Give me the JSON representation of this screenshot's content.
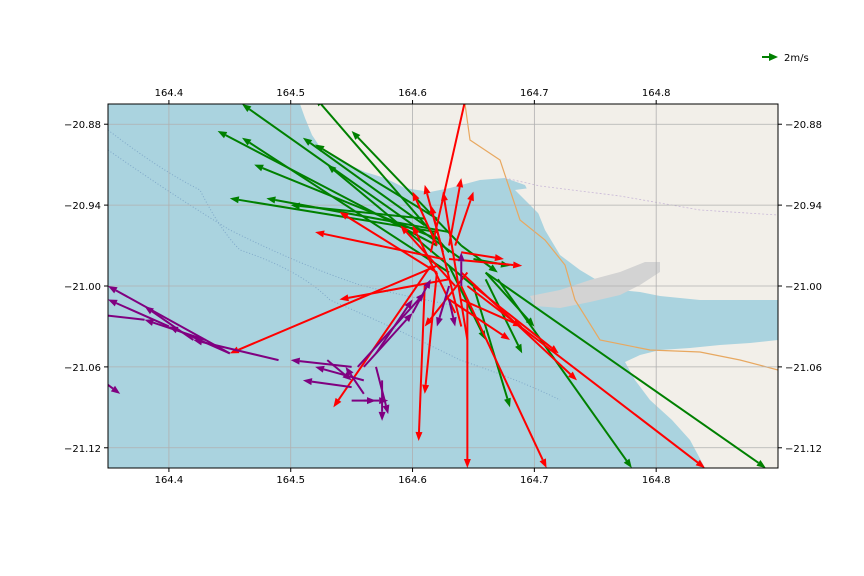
{
  "chart_data": {
    "type": "quiver",
    "xlim": [
      164.35,
      164.9
    ],
    "ylim": [
      -21.135,
      -20.865
    ],
    "x_ticks": [
      164.4,
      164.5,
      164.6,
      164.7,
      164.8
    ],
    "x_tick_labels": [
      "164.4",
      "164.5",
      "164.6",
      "164.7",
      "164.8"
    ],
    "y_ticks": [
      -20.88,
      -20.94,
      -21.0,
      -21.06,
      -21.12
    ],
    "y_tick_labels": [
      "−20.88",
      "−20.94",
      "−21.00",
      "−21.06",
      "−21.12"
    ],
    "grid": true,
    "ticks_on": "all-sides",
    "legend": {
      "label": "2m/s",
      "color": "#008000",
      "position": "top-right"
    },
    "colors": {
      "sea": "#aad3df",
      "land": "#f2efe9",
      "green": "#008000",
      "red": "#ff0000",
      "purple": "#800080",
      "grid": "#b0b0b0"
    },
    "series": [
      {
        "color": "green",
        "vectors": [
          [
            164.64,
            -20.98,
            164.46,
            -20.865
          ],
          [
            164.63,
            -20.975,
            164.52,
            -20.86
          ],
          [
            164.62,
            -20.965,
            164.47,
            -20.91
          ],
          [
            164.61,
            -20.955,
            164.51,
            -20.89
          ],
          [
            164.62,
            -20.97,
            164.44,
            -20.885
          ],
          [
            164.63,
            -20.99,
            164.46,
            -20.89
          ],
          [
            164.65,
            -21.0,
            164.53,
            -20.91
          ],
          [
            164.62,
            -20.96,
            164.45,
            -20.935
          ],
          [
            164.63,
            -20.96,
            164.48,
            -20.935
          ],
          [
            164.64,
            -20.97,
            164.55,
            -20.885
          ],
          [
            164.67,
            -20.995,
            164.78,
            -21.135
          ],
          [
            164.66,
            -20.99,
            164.89,
            -21.135
          ],
          [
            164.66,
            -20.995,
            164.69,
            -21.05
          ],
          [
            164.65,
            -21.0,
            164.68,
            -21.09
          ],
          [
            164.66,
            -20.99,
            164.7,
            -21.03
          ],
          [
            164.65,
            -20.98,
            164.68,
            -20.985
          ],
          [
            164.64,
            -20.97,
            164.67,
            -20.99
          ],
          [
            164.61,
            -20.95,
            164.5,
            -20.94
          ],
          [
            164.62,
            -20.95,
            164.52,
            -20.895
          ],
          [
            164.63,
            -20.985,
            164.66,
            -21.04
          ]
        ]
      },
      {
        "color": "red",
        "vectors": [
          [
            164.615,
            -20.975,
            164.645,
            -20.855
          ],
          [
            164.645,
            -21.01,
            164.645,
            -21.135
          ],
          [
            164.61,
            -21.0,
            164.605,
            -21.115
          ],
          [
            164.62,
            -20.99,
            164.61,
            -21.08
          ],
          [
            164.625,
            -20.98,
            164.52,
            -20.96
          ],
          [
            164.62,
            -20.985,
            164.45,
            -21.05
          ],
          [
            164.63,
            -20.995,
            164.54,
            -21.01
          ],
          [
            164.62,
            -20.99,
            164.54,
            -20.945
          ],
          [
            164.63,
            -20.98,
            164.69,
            -20.985
          ],
          [
            164.64,
            -20.99,
            164.735,
            -21.07
          ],
          [
            164.65,
            -21.0,
            164.72,
            -21.05
          ],
          [
            164.645,
            -21.0,
            164.84,
            -21.135
          ],
          [
            164.64,
            -21.0,
            164.71,
            -21.135
          ],
          [
            164.615,
            -20.985,
            164.535,
            -21.09
          ],
          [
            164.62,
            -20.97,
            164.6,
            -20.93
          ],
          [
            164.625,
            -20.975,
            164.61,
            -20.925
          ],
          [
            164.63,
            -20.97,
            164.64,
            -20.92
          ],
          [
            164.635,
            -20.97,
            164.65,
            -20.93
          ],
          [
            164.64,
            -20.975,
            164.675,
            -20.98
          ],
          [
            164.645,
            -20.99,
            164.61,
            -21.03
          ],
          [
            164.63,
            -21.01,
            164.68,
            -21.04
          ],
          [
            164.635,
            -21.02,
            164.6,
            -20.955
          ],
          [
            164.64,
            -21.03,
            164.615,
            -20.94
          ],
          [
            164.645,
            -21.04,
            164.625,
            -20.93
          ],
          [
            164.64,
            -21.01,
            164.69,
            -21.03
          ],
          [
            164.635,
            -21.0,
            164.59,
            -20.955
          ]
        ]
      },
      {
        "color": "purple",
        "vectors": [
          [
            164.45,
            -21.05,
            164.35,
            -21.0
          ],
          [
            164.4,
            -21.03,
            164.35,
            -21.01
          ],
          [
            164.38,
            -21.025,
            164.33,
            -21.02
          ],
          [
            164.43,
            -21.04,
            164.38,
            -21.025
          ],
          [
            164.49,
            -21.055,
            164.42,
            -21.04
          ],
          [
            164.55,
            -21.06,
            164.5,
            -21.055
          ],
          [
            164.56,
            -21.07,
            164.52,
            -21.06
          ],
          [
            164.55,
            -21.085,
            164.57,
            -21.085
          ],
          [
            164.55,
            -21.075,
            164.51,
            -21.07
          ],
          [
            164.56,
            -21.085,
            164.58,
            -21.085
          ],
          [
            164.57,
            -21.06,
            164.58,
            -21.095
          ],
          [
            164.575,
            -21.07,
            164.575,
            -21.1
          ],
          [
            164.56,
            -21.06,
            164.6,
            -21.02
          ],
          [
            164.57,
            -21.05,
            164.6,
            -21.01
          ],
          [
            164.555,
            -21.06,
            164.61,
            -21.005
          ],
          [
            164.6,
            -21.02,
            164.615,
            -20.995
          ],
          [
            164.63,
            -21.0,
            164.62,
            -21.03
          ],
          [
            164.64,
            -21.0,
            164.64,
            -20.975
          ],
          [
            164.63,
            -21.01,
            164.635,
            -21.03
          ],
          [
            164.42,
            -21.04,
            164.38,
            -21.015
          ],
          [
            164.33,
            -21.06,
            164.36,
            -21.08
          ],
          [
            164.45,
            -21.05,
            164.4,
            -21.03
          ],
          [
            164.53,
            -21.055,
            164.55,
            -21.07
          ],
          [
            164.56,
            -21.08,
            164.545,
            -21.06
          ]
        ]
      }
    ]
  }
}
